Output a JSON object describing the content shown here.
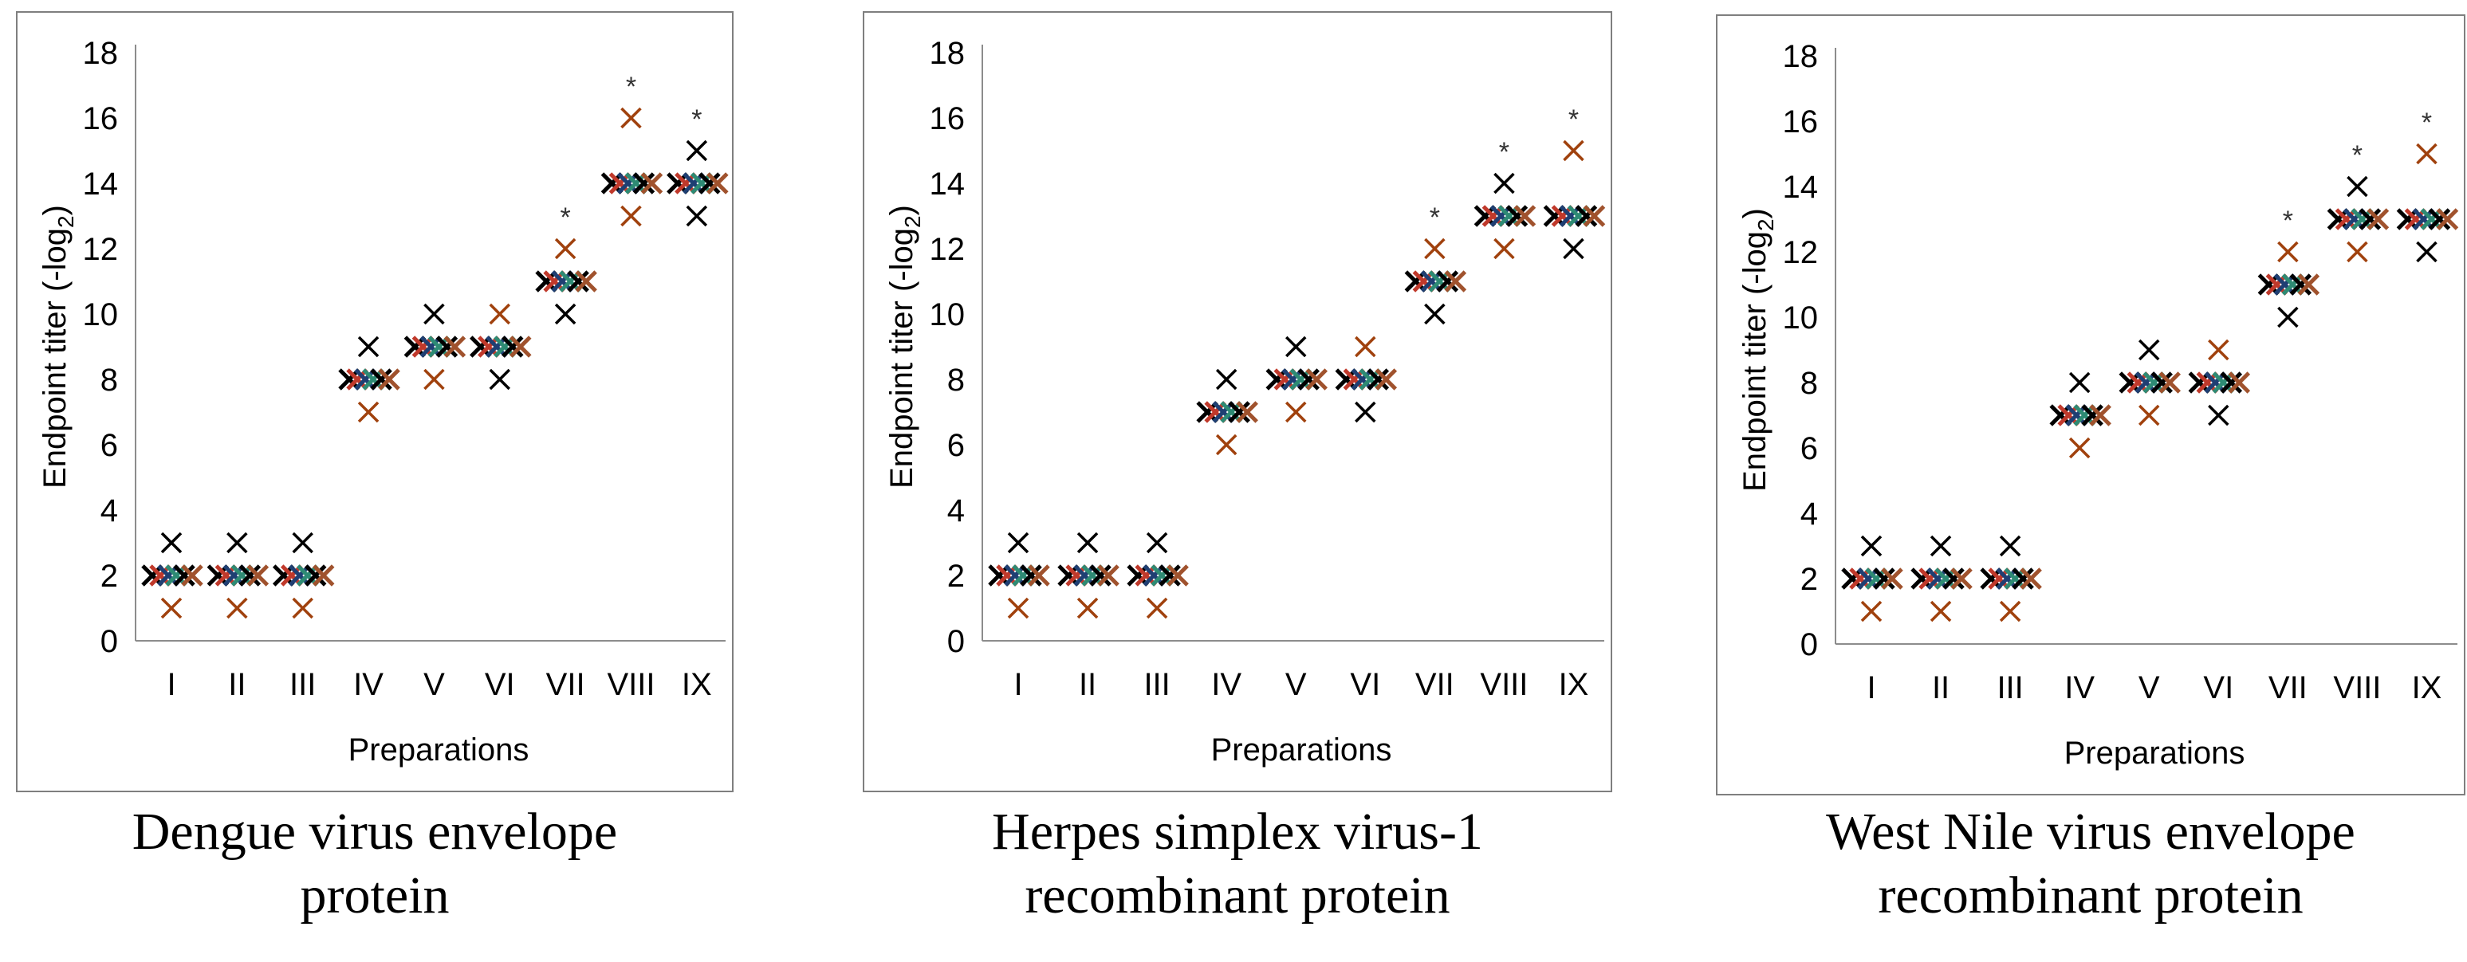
{
  "chart_data": [
    {
      "type": "scatter",
      "caption_line1": "Dengue virus envelope",
      "caption_line2": "protein",
      "xlabel": "Preparations",
      "ylabel": "Endpoint titer (-log",
      "ylabel_sub": "2",
      "ylabel_close": ")",
      "ylim": [
        0,
        18
      ],
      "yticks": [
        "0",
        "2",
        "4",
        "6",
        "8",
        "10",
        "12",
        "14",
        "16",
        "18"
      ],
      "categories": [
        "I",
        "II",
        "III",
        "IV",
        "V",
        "VI",
        "VII",
        "VIII",
        "IX"
      ],
      "series_colors": [
        "#000000",
        "#c0392b",
        "#1f3f73",
        "#2e8b74",
        "#000000",
        "#a0522d"
      ],
      "center": [
        2,
        2,
        2,
        8,
        9,
        9,
        11,
        14,
        14
      ],
      "outlier_up": [
        3,
        3,
        3,
        9,
        10,
        10,
        12,
        16,
        15
      ],
      "outlier_up_color": [
        "black",
        "black",
        "black",
        "black",
        "black",
        "brown",
        "brown",
        "brown",
        "black"
      ],
      "outlier_down": [
        1,
        1,
        1,
        7,
        8,
        8,
        10,
        13,
        13
      ],
      "outlier_down_color": [
        "brown",
        "brown",
        "brown",
        "brown",
        "brown",
        "black",
        "black",
        "brown",
        "black"
      ],
      "significance": [
        "",
        "",
        "",
        "",
        "",
        "",
        "*",
        "*",
        "*"
      ],
      "grid": false,
      "legend": "none"
    },
    {
      "type": "scatter",
      "caption_line1": "Herpes simplex virus-1",
      "caption_line2": "recombinant protein",
      "xlabel": "Preparations",
      "ylabel": "Endpoint titer (-log",
      "ylabel_sub": "2",
      "ylabel_close": ")",
      "ylim": [
        0,
        18
      ],
      "yticks": [
        "0",
        "2",
        "4",
        "6",
        "8",
        "10",
        "12",
        "14",
        "16",
        "18"
      ],
      "categories": [
        "I",
        "II",
        "III",
        "IV",
        "V",
        "VI",
        "VII",
        "VIII",
        "IX"
      ],
      "series_colors": [
        "#000000",
        "#c0392b",
        "#1f3f73",
        "#2e8b74",
        "#000000",
        "#a0522d"
      ],
      "center": [
        2,
        2,
        2,
        7,
        8,
        8,
        11,
        13,
        13
      ],
      "outlier_up": [
        3,
        3,
        3,
        8,
        9,
        9,
        12,
        14,
        15
      ],
      "outlier_up_color": [
        "black",
        "black",
        "black",
        "black",
        "black",
        "brown",
        "brown",
        "black",
        "brown"
      ],
      "outlier_down": [
        1,
        1,
        1,
        6,
        7,
        7,
        10,
        12,
        12
      ],
      "outlier_down_color": [
        "brown",
        "brown",
        "brown",
        "brown",
        "brown",
        "black",
        "black",
        "brown",
        "black"
      ],
      "significance": [
        "",
        "",
        "",
        "",
        "",
        "",
        "*",
        "*",
        "*"
      ],
      "grid": false,
      "legend": "none"
    },
    {
      "type": "scatter",
      "caption_line1": "West Nile virus envelope",
      "caption_line2": "recombinant protein",
      "xlabel": "Preparations",
      "ylabel": "Endpoint titer (-log",
      "ylabel_sub": "2",
      "ylabel_close": ")",
      "ylim": [
        0,
        18
      ],
      "yticks": [
        "0",
        "2",
        "4",
        "6",
        "8",
        "10",
        "12",
        "14",
        "16",
        "18"
      ],
      "categories": [
        "I",
        "II",
        "III",
        "IV",
        "V",
        "VI",
        "VII",
        "VIII",
        "IX"
      ],
      "series_colors": [
        "#000000",
        "#c0392b",
        "#1f3f73",
        "#2e8b74",
        "#000000",
        "#a0522d"
      ],
      "center": [
        2,
        2,
        2,
        7,
        8,
        8,
        11,
        13,
        13
      ],
      "outlier_up": [
        3,
        3,
        3,
        8,
        9,
        9,
        12,
        14,
        15
      ],
      "outlier_up_color": [
        "black",
        "black",
        "black",
        "black",
        "black",
        "brown",
        "brown",
        "black",
        "brown"
      ],
      "outlier_down": [
        1,
        1,
        1,
        6,
        7,
        7,
        10,
        12,
        12
      ],
      "outlier_down_color": [
        "brown",
        "brown",
        "brown",
        "brown",
        "brown",
        "black",
        "black",
        "brown",
        "black"
      ],
      "significance": [
        "",
        "",
        "",
        "",
        "",
        "",
        "*",
        "*",
        "*"
      ],
      "grid": false,
      "legend": "none"
    }
  ]
}
